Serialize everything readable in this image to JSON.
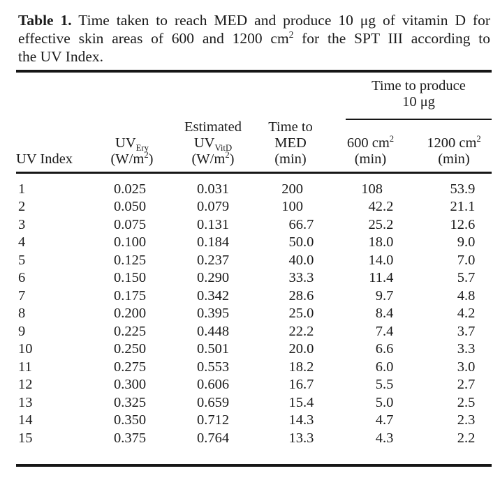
{
  "caption": {
    "label": "Table 1.",
    "line1": " Time taken to reach MED and produce 10 μg of vitamin D for",
    "line2_pre": "effective skin areas of 600 and 1200 cm",
    "line2_sup": "2",
    "line2_post": " for the SPT III according to",
    "line3": "the UV Index."
  },
  "header": {
    "col1": "UV Index",
    "col2": {
      "main": "UV",
      "sub": "Ery",
      "unit_pre": "(W/m",
      "unit_sup": "2",
      "unit_post": ")"
    },
    "col3": {
      "line1": "Estimated",
      "main": "UV",
      "sub": "VitD",
      "unit_pre": "(W/m",
      "unit_sup": "2",
      "unit_post": ")"
    },
    "col4": {
      "line1": "Time to",
      "line2": "MED",
      "line3": "(min)"
    },
    "spanner": {
      "line1": "Time to produce",
      "line2": "10 μg"
    },
    "col5": {
      "pre": "600 cm",
      "sup": "2",
      "unit": "(min)"
    },
    "col6": {
      "pre": "1200 cm",
      "sup": "2",
      "unit": "(min)"
    }
  },
  "table": {
    "columns": [
      "UV Index",
      "UV_Ery (W/m2)",
      "Estimated UV_VitD (W/m2)",
      "Time to MED (min)",
      "Time to produce 10 μg 600 cm2 (min)",
      "Time to produce 10 μg 1200 cm2 (min)"
    ],
    "rows": [
      [
        "1",
        "0.025",
        "0.031",
        "200",
        "108",
        "53.9"
      ],
      [
        "2",
        "0.050",
        "0.079",
        "100",
        "42.2",
        "21.1"
      ],
      [
        "3",
        "0.075",
        "0.131",
        "66.7",
        "25.2",
        "12.6"
      ],
      [
        "4",
        "0.100",
        "0.184",
        "50.0",
        "18.0",
        "9.0"
      ],
      [
        "5",
        "0.125",
        "0.237",
        "40.0",
        "14.0",
        "7.0"
      ],
      [
        "6",
        "0.150",
        "0.290",
        "33.3",
        "11.4",
        "5.7"
      ],
      [
        "7",
        "0.175",
        "0.342",
        "28.6",
        "9.7",
        "4.8"
      ],
      [
        "8",
        "0.200",
        "0.395",
        "25.0",
        "8.4",
        "4.2"
      ],
      [
        "9",
        "0.225",
        "0.448",
        "22.2",
        "7.4",
        "3.7"
      ],
      [
        "10",
        "0.250",
        "0.501",
        "20.0",
        "6.6",
        "3.3"
      ],
      [
        "11",
        "0.275",
        "0.553",
        "18.2",
        "6.0",
        "3.0"
      ],
      [
        "12",
        "0.300",
        "0.606",
        "16.7",
        "5.5",
        "2.7"
      ],
      [
        "13",
        "0.325",
        "0.659",
        "15.4",
        "5.0",
        "2.5"
      ],
      [
        "14",
        "0.350",
        "0.712",
        "14.3",
        "4.7",
        "2.3"
      ],
      [
        "15",
        "0.375",
        "0.764",
        "13.3",
        "4.3",
        "2.2"
      ]
    ]
  },
  "colors": {
    "rule": "#161616",
    "text": "#1b1b1b",
    "background": "#ffffff"
  }
}
